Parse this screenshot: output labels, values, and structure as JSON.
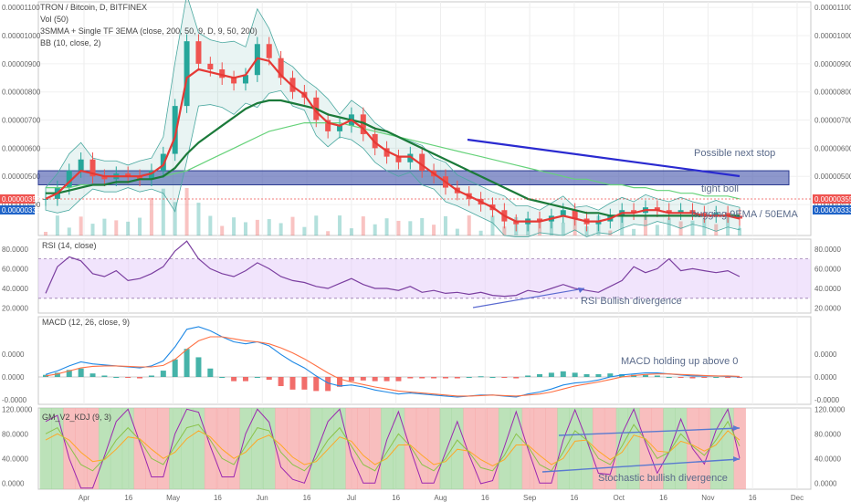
{
  "header": {
    "title": "TRON / Bitcoin, D, BITFINEX",
    "ind_vol": "Vol (50)",
    "ind_ma": "3SMMA + Single TF 3EMA (close, 200, 50, 9, D, 9, 50, 200)",
    "ind_bb": "BB (10, close, 2)"
  },
  "panes": {
    "rsi_label": "RSI (14, close)",
    "macd_label": "MACD (12, 26, close, 9)",
    "kdj_label": "GM_V2_KDJ (9, 3)"
  },
  "price_tags": {
    "last": "0.00000355",
    "ma": "0.00000333"
  },
  "annotations": {
    "next_stop": "Possible next stop",
    "tight_boll": "tight boll",
    "hugging": "hugging 9EMA / 50EMA",
    "rsi_div": "RSI Bullish divergence",
    "macd_hold": "MACD holding up above 0",
    "stoch_div": "Stochastic bullish divergence"
  },
  "colors": {
    "up": "#26a69a",
    "down": "#ef5350",
    "ema9": "#e53935",
    "ema50": "#1b7a3a",
    "ema200": "#66d27a",
    "bb": "#4aa8a0",
    "trend": "#2a2ad0",
    "zone": "#5060b0",
    "rsi": "#7b3fa0",
    "macd": "#1e88e5",
    "signal": "#ff7043",
    "kdj_k": "#9c27b0",
    "kdj_d": "#ffa726",
    "kdj_j": "#8bc34a"
  },
  "chart_data": [
    {
      "pane": "price",
      "type": "line",
      "title": "TRON / Bitcoin, D, BITFINEX",
      "x_ticks": [
        "Apr",
        "16",
        "May",
        "16",
        "Jun",
        "16",
        "Jul",
        "16",
        "Aug",
        "16",
        "Sep",
        "16",
        "Oct",
        "16",
        "Nov",
        "16",
        "Dec"
      ],
      "y_ticks": [
        "0.00000400",
        "0.00000500",
        "0.00000600",
        "0.00000700",
        "0.00000800",
        "0.00000900",
        "0.00001000",
        "0.00001100"
      ],
      "ylim": [
        2.9e-06,
        1.12e-05
      ],
      "series": [
        {
          "role": "close",
          "values": [
            4.2e-06,
            4.6e-06,
            5.2e-06,
            5.6e-06,
            5e-06,
            4.9e-06,
            5.1e-06,
            5e-06,
            4.9e-06,
            5.2e-06,
            5.8e-06,
            7.5e-06,
            9.8e-06,
            9e-06,
            8.8e-06,
            8.5e-06,
            8.3e-06,
            8.6e-06,
            9.7e-06,
            9.2e-06,
            8.5e-06,
            8e-06,
            7.8e-06,
            7e-06,
            6.6e-06,
            6.8e-06,
            7.2e-06,
            6.5e-06,
            6e-06,
            5.7e-06,
            5.5e-06,
            5.8e-06,
            5.2e-06,
            5e-06,
            4.6e-06,
            4.4e-06,
            4.2e-06,
            4e-06,
            3.8e-06,
            3.4e-06,
            3.3e-06,
            3.5e-06,
            3.4e-06,
            3.6e-06,
            3.8e-06,
            3.5e-06,
            3.3e-06,
            3.4e-06,
            3.6e-06,
            3.8e-06,
            3.7e-06,
            3.9e-06,
            3.8e-06,
            3.7e-06,
            3.8e-06,
            3.7e-06,
            3.6e-06,
            3.7e-06,
            3.6e-06,
            3.5e-06
          ]
        },
        {
          "role": "ema9",
          "values": [
            4.2e-06,
            4.4e-06,
            4.8e-06,
            5.2e-06,
            5.1e-06,
            5e-06,
            5e-06,
            5e-06,
            5e-06,
            5.1e-06,
            5.4e-06,
            6.4e-06,
            8.5e-06,
            8.8e-06,
            8.7e-06,
            8.6e-06,
            8.5e-06,
            8.6e-06,
            9.2e-06,
            9.1e-06,
            8.6e-06,
            8.2e-06,
            7.9e-06,
            7.3e-06,
            6.9e-06,
            6.8e-06,
            7e-06,
            6.7e-06,
            6.2e-06,
            5.9e-06,
            5.7e-06,
            5.7e-06,
            5.4e-06,
            5.1e-06,
            4.8e-06,
            4.5e-06,
            4.3e-06,
            4.1e-06,
            3.9e-06,
            3.6e-06,
            3.4e-06,
            3.4e-06,
            3.4e-06,
            3.5e-06,
            3.6e-06,
            3.5e-06,
            3.4e-06,
            3.4e-06,
            3.5e-06,
            3.7e-06,
            3.7e-06,
            3.8e-06,
            3.8e-06,
            3.7e-06,
            3.7e-06,
            3.7e-06,
            3.6e-06,
            3.6e-06,
            3.6e-06,
            3.5e-06
          ]
        },
        {
          "role": "ema50",
          "values": [
            4.4e-06,
            4.4e-06,
            4.5e-06,
            4.6e-06,
            4.7e-06,
            4.7e-06,
            4.8e-06,
            4.8e-06,
            4.9e-06,
            4.9e-06,
            5e-06,
            5.3e-06,
            5.8e-06,
            6.2e-06,
            6.5e-06,
            6.8e-06,
            7.1e-06,
            7.4e-06,
            7.6e-06,
            7.7e-06,
            7.7e-06,
            7.6e-06,
            7.5e-06,
            7.4e-06,
            7.2e-06,
            7.1e-06,
            7e-06,
            6.9e-06,
            6.7e-06,
            6.6e-06,
            6.4e-06,
            6.2e-06,
            6e-06,
            5.8e-06,
            5.6e-06,
            5.4e-06,
            5.2e-06,
            5e-06,
            4.8e-06,
            4.6e-06,
            4.4e-06,
            4.2e-06,
            4.1e-06,
            4e-06,
            3.9e-06,
            3.8e-06,
            3.7e-06,
            3.7e-06,
            3.6e-06,
            3.6e-06,
            3.6e-06,
            3.6e-06,
            3.6e-06,
            3.6e-06,
            3.6e-06,
            3.6e-06,
            3.6e-06,
            3.6e-06,
            3.6e-06,
            3.6e-06
          ]
        },
        {
          "role": "ema200",
          "values": [
            4.6e-06,
            4.6e-06,
            4.6e-06,
            4.7e-06,
            4.7e-06,
            4.7e-06,
            4.8e-06,
            4.8e-06,
            4.9e-06,
            4.9e-06,
            5e-06,
            5.1e-06,
            5.2e-06,
            5.4e-06,
            5.6e-06,
            5.8e-06,
            6e-06,
            6.2e-06,
            6.4e-06,
            6.6e-06,
            6.7e-06,
            6.8e-06,
            6.9e-06,
            6.9e-06,
            6.9e-06,
            6.9e-06,
            6.8e-06,
            6.7e-06,
            6.6e-06,
            6.5e-06,
            6.4e-06,
            6.3e-06,
            6.2e-06,
            6.1e-06,
            6e-06,
            5.9e-06,
            5.8e-06,
            5.7e-06,
            5.6e-06,
            5.5e-06,
            5.4e-06,
            5.3e-06,
            5.2e-06,
            5.1e-06,
            5e-06,
            4.9e-06,
            4.9e-06,
            4.8e-06,
            4.7e-06,
            4.7e-06,
            4.6e-06,
            4.6e-06,
            4.5e-06,
            4.5e-06,
            4.4e-06,
            4.4e-06,
            4.3e-06,
            4.3e-06,
            4.3e-06,
            4.2e-06
          ]
        }
      ],
      "zone": {
        "from": 4.7e-06,
        "to": 5.2e-06
      }
    },
    {
      "pane": "rsi",
      "type": "line",
      "y_ticks": [
        "20.0000",
        "40.0000",
        "60.0000",
        "80.0000"
      ],
      "ylim": [
        15,
        90
      ],
      "band": [
        30,
        70
      ],
      "values": [
        35,
        62,
        72,
        68,
        55,
        52,
        58,
        48,
        50,
        55,
        62,
        78,
        88,
        70,
        60,
        55,
        52,
        58,
        66,
        60,
        52,
        48,
        46,
        42,
        40,
        45,
        50,
        44,
        40,
        40,
        38,
        42,
        36,
        38,
        35,
        36,
        34,
        36,
        33,
        32,
        33,
        38,
        36,
        40,
        44,
        40,
        38,
        36,
        42,
        48,
        62,
        56,
        60,
        70,
        58,
        60,
        58,
        56,
        58,
        52
      ]
    },
    {
      "pane": "macd",
      "type": "line",
      "y_ticks": [
        "-0.0000",
        "0.0000",
        "0.0000"
      ],
      "macd": [
        0.05,
        0.12,
        0.22,
        0.3,
        0.26,
        0.24,
        0.22,
        0.2,
        0.18,
        0.22,
        0.32,
        0.6,
        0.95,
        1.0,
        0.92,
        0.8,
        0.7,
        0.66,
        0.7,
        0.62,
        0.45,
        0.3,
        0.18,
        0.02,
        -0.12,
        -0.18,
        -0.16,
        -0.2,
        -0.26,
        -0.3,
        -0.34,
        -0.32,
        -0.34,
        -0.36,
        -0.38,
        -0.4,
        -0.38,
        -0.36,
        -0.36,
        -0.38,
        -0.4,
        -0.34,
        -0.3,
        -0.24,
        -0.16,
        -0.12,
        -0.1,
        -0.06,
        0.0,
        0.04,
        0.06,
        0.08,
        0.08,
        0.06,
        0.04,
        0.02,
        0.02,
        0.02,
        0.01,
        0.0
      ],
      "signal": [
        0.02,
        0.06,
        0.12,
        0.18,
        0.21,
        0.22,
        0.22,
        0.21,
        0.2,
        0.2,
        0.23,
        0.35,
        0.55,
        0.72,
        0.8,
        0.8,
        0.76,
        0.72,
        0.7,
        0.66,
        0.58,
        0.48,
        0.36,
        0.22,
        0.08,
        -0.04,
        -0.1,
        -0.15,
        -0.2,
        -0.24,
        -0.28,
        -0.3,
        -0.32,
        -0.34,
        -0.36,
        -0.38,
        -0.38,
        -0.37,
        -0.36,
        -0.37,
        -0.38,
        -0.36,
        -0.34,
        -0.3,
        -0.24,
        -0.18,
        -0.14,
        -0.1,
        -0.05,
        0.0,
        0.03,
        0.05,
        0.06,
        0.06,
        0.05,
        0.04,
        0.03,
        0.02,
        0.02,
        0.01
      ]
    },
    {
      "pane": "kdj",
      "type": "line",
      "y_ticks": [
        "0.0000",
        "40.0000",
        "80.0000",
        "120.0000"
      ],
      "ylim": [
        -10,
        122
      ],
      "k": [
        80,
        90,
        60,
        30,
        20,
        40,
        70,
        90,
        70,
        40,
        30,
        60,
        90,
        95,
        70,
        40,
        30,
        60,
        90,
        85,
        50,
        30,
        20,
        40,
        70,
        90,
        60,
        30,
        20,
        50,
        80,
        60,
        30,
        20,
        40,
        70,
        50,
        25,
        20,
        45,
        80,
        60,
        30,
        20,
        50,
        85,
        70,
        40,
        30,
        60,
        95,
        70,
        40,
        50,
        80,
        60,
        45,
        70,
        100,
        60
      ],
      "d": [
        70,
        80,
        70,
        50,
        35,
        38,
        55,
        75,
        72,
        55,
        40,
        50,
        72,
        85,
        75,
        55,
        40,
        50,
        70,
        78,
        62,
        42,
        30,
        35,
        55,
        75,
        68,
        45,
        30,
        40,
        62,
        62,
        45,
        30,
        35,
        55,
        52,
        38,
        28,
        38,
        62,
        62,
        45,
        30,
        40,
        68,
        70,
        52,
        38,
        50,
        78,
        72,
        52,
        50,
        68,
        62,
        52,
        62,
        85,
        70
      ]
    }
  ]
}
